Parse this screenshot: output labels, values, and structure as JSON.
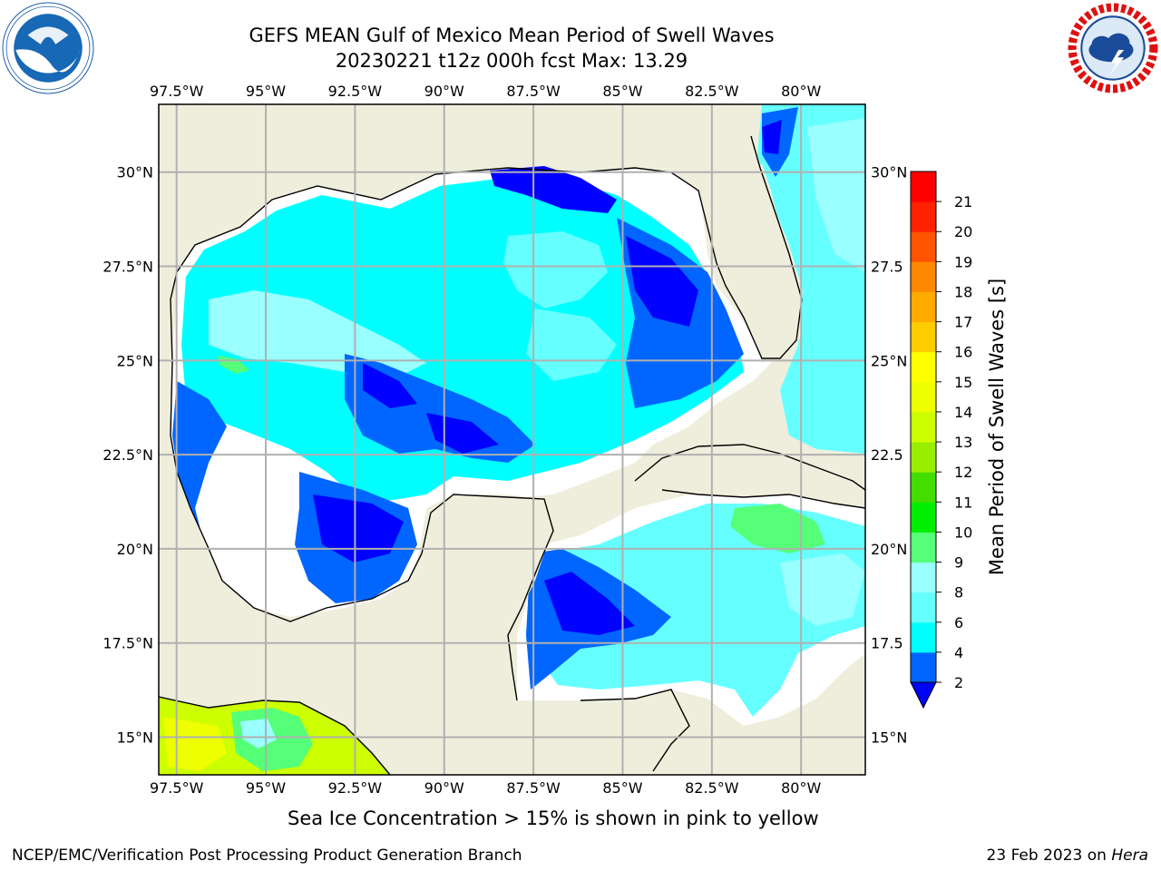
{
  "title": {
    "line1": "GEFS MEAN Gulf of Mexico Mean Period of Swell Waves",
    "line2": "20230221 t12z 000h fcst   Max: 13.29"
  },
  "map": {
    "lon_range": [
      -98,
      -78.2
    ],
    "lat_range": [
      14.0,
      31.8
    ],
    "lon_ticks": [
      {
        "value": -97.5,
        "label": "97.5°W"
      },
      {
        "value": -95,
        "label": "95°W"
      },
      {
        "value": -92.5,
        "label": "92.5°W"
      },
      {
        "value": -90,
        "label": "90°W"
      },
      {
        "value": -87.5,
        "label": "87.5°W"
      },
      {
        "value": -85,
        "label": "85°W"
      },
      {
        "value": -82.5,
        "label": "82.5°W"
      },
      {
        "value": -80,
        "label": "80°W"
      }
    ],
    "lat_ticks_left": [
      {
        "value": 30,
        "label": "30°N"
      },
      {
        "value": 27.5,
        "label": "27.5°N"
      },
      {
        "value": 25,
        "label": "25°N"
      },
      {
        "value": 22.5,
        "label": "22.5°N"
      },
      {
        "value": 20,
        "label": "20°N"
      },
      {
        "value": 17.5,
        "label": "17.5°N"
      },
      {
        "value": 15,
        "label": "15°N"
      }
    ],
    "lat_ticks_right": [
      {
        "value": 30,
        "label": "30°N"
      },
      {
        "value": 27.5,
        "label": "27.5"
      },
      {
        "value": 25,
        "label": "25°N"
      },
      {
        "value": 22.5,
        "label": "22.5"
      },
      {
        "value": 20,
        "label": "20°N"
      },
      {
        "value": 17.5,
        "label": "17.5"
      },
      {
        "value": 15,
        "label": "15°N"
      }
    ],
    "grid": true,
    "colors": {
      "land": "#efeedd",
      "no_data": "#ffffff",
      "coast": "#000000",
      "grid": "#b0b0b0"
    }
  },
  "colorbar": {
    "label": "Mean Period of Swell Waves [s]",
    "min": 2,
    "max": 21,
    "extend": "min",
    "ticks": [
      2,
      4,
      6,
      8,
      9,
      10,
      11,
      12,
      13,
      14,
      15,
      16,
      17,
      18,
      19,
      20,
      21
    ],
    "colors": [
      "#0066ff",
      "#00ffff",
      "#66ffff",
      "#99ffff",
      "#55ff77",
      "#00ee00",
      "#44dd00",
      "#99ee00",
      "#ccff00",
      "#eeff00",
      "#ffff00",
      "#ffcc00",
      "#ffaa00",
      "#ff8800",
      "#ff5500",
      "#ff2200",
      "#ff0000"
    ],
    "under_color": "#0000ff"
  },
  "note": "Sea Ice Concentration > 15% is shown in pink to yellow",
  "footer": {
    "left": "NCEP/EMC/Verification Post Processing Product Generation Branch",
    "date": "23 Feb 2023 on ",
    "host": "Hera"
  },
  "logos": {
    "left": "noaa-logo-icon",
    "right": "nws-logo-icon"
  }
}
